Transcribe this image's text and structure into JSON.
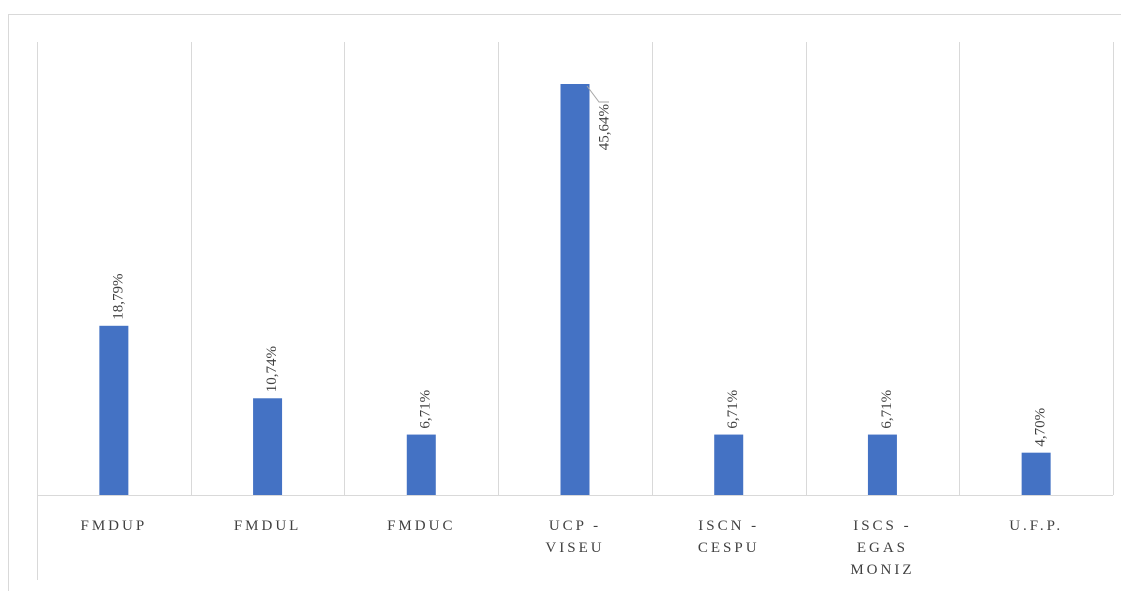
{
  "chart_data": {
    "type": "bar",
    "title": "",
    "xlabel": "",
    "ylabel": "",
    "categories": [
      [
        "FMDUP"
      ],
      [
        "FMDUL"
      ],
      [
        "FMDUC"
      ],
      [
        "UCP -",
        "VISEU"
      ],
      [
        "ISCN -",
        "CESPU"
      ],
      [
        "ISCS -",
        "EGAS",
        "MONIZ"
      ],
      [
        "U.F.P."
      ]
    ],
    "values": [
      18.79,
      10.74,
      6.71,
      45.64,
      6.71,
      6.71,
      4.7
    ],
    "data_labels": [
      "18,79%",
      "10,74%",
      "6,71%",
      "45,64%",
      "6,71%",
      "6,71%",
      "4,70%"
    ],
    "ylim": [
      0,
      50
    ],
    "grid": "vertical separators",
    "legend": "none",
    "bar_color": "#4472C4",
    "grid_color": "#d9d9d9",
    "text_color": "#404040"
  }
}
